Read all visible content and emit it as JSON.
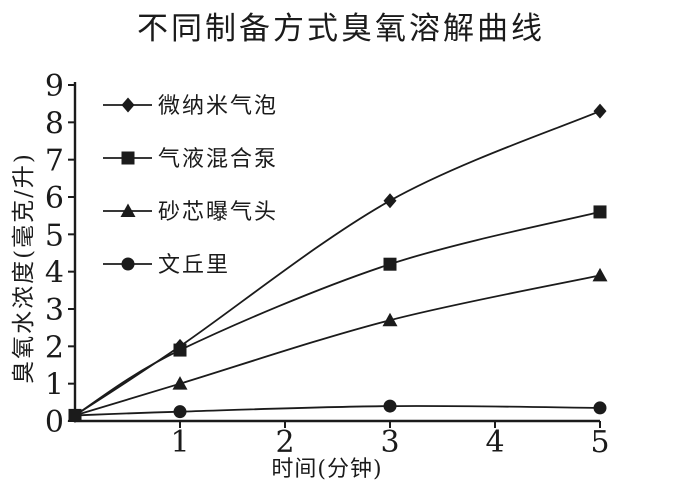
{
  "chart_data": {
    "type": "line",
    "title": "不同制备方式臭氧溶解曲线",
    "xlabel": "时间(分钟)",
    "ylabel": "臭氧水浓度(毫克/升)",
    "xlim": [
      0,
      5
    ],
    "ylim": [
      0,
      9
    ],
    "xticks": [
      1,
      2,
      3,
      4,
      5
    ],
    "yticks": [
      0,
      1,
      2,
      3,
      4,
      5,
      6,
      7,
      8,
      9
    ],
    "grid": false,
    "legend_position": "upper-left-inside",
    "x": [
      0,
      1,
      3,
      5
    ],
    "series": [
      {
        "name": "微纳米气泡",
        "marker": "diamond",
        "values": [
          0.15,
          2.0,
          5.9,
          8.3
        ]
      },
      {
        "name": "气液混合泵",
        "marker": "square",
        "values": [
          0.15,
          1.9,
          4.2,
          5.6
        ]
      },
      {
        "name": "砂芯曝气头",
        "marker": "triangle",
        "values": [
          0.15,
          1.0,
          2.7,
          3.9
        ]
      },
      {
        "name": "文丘里",
        "marker": "circle",
        "values": [
          0.15,
          0.25,
          0.4,
          0.35
        ]
      }
    ],
    "colors": {
      "ink": "#1b1b1b",
      "background": "#ffffff"
    }
  }
}
